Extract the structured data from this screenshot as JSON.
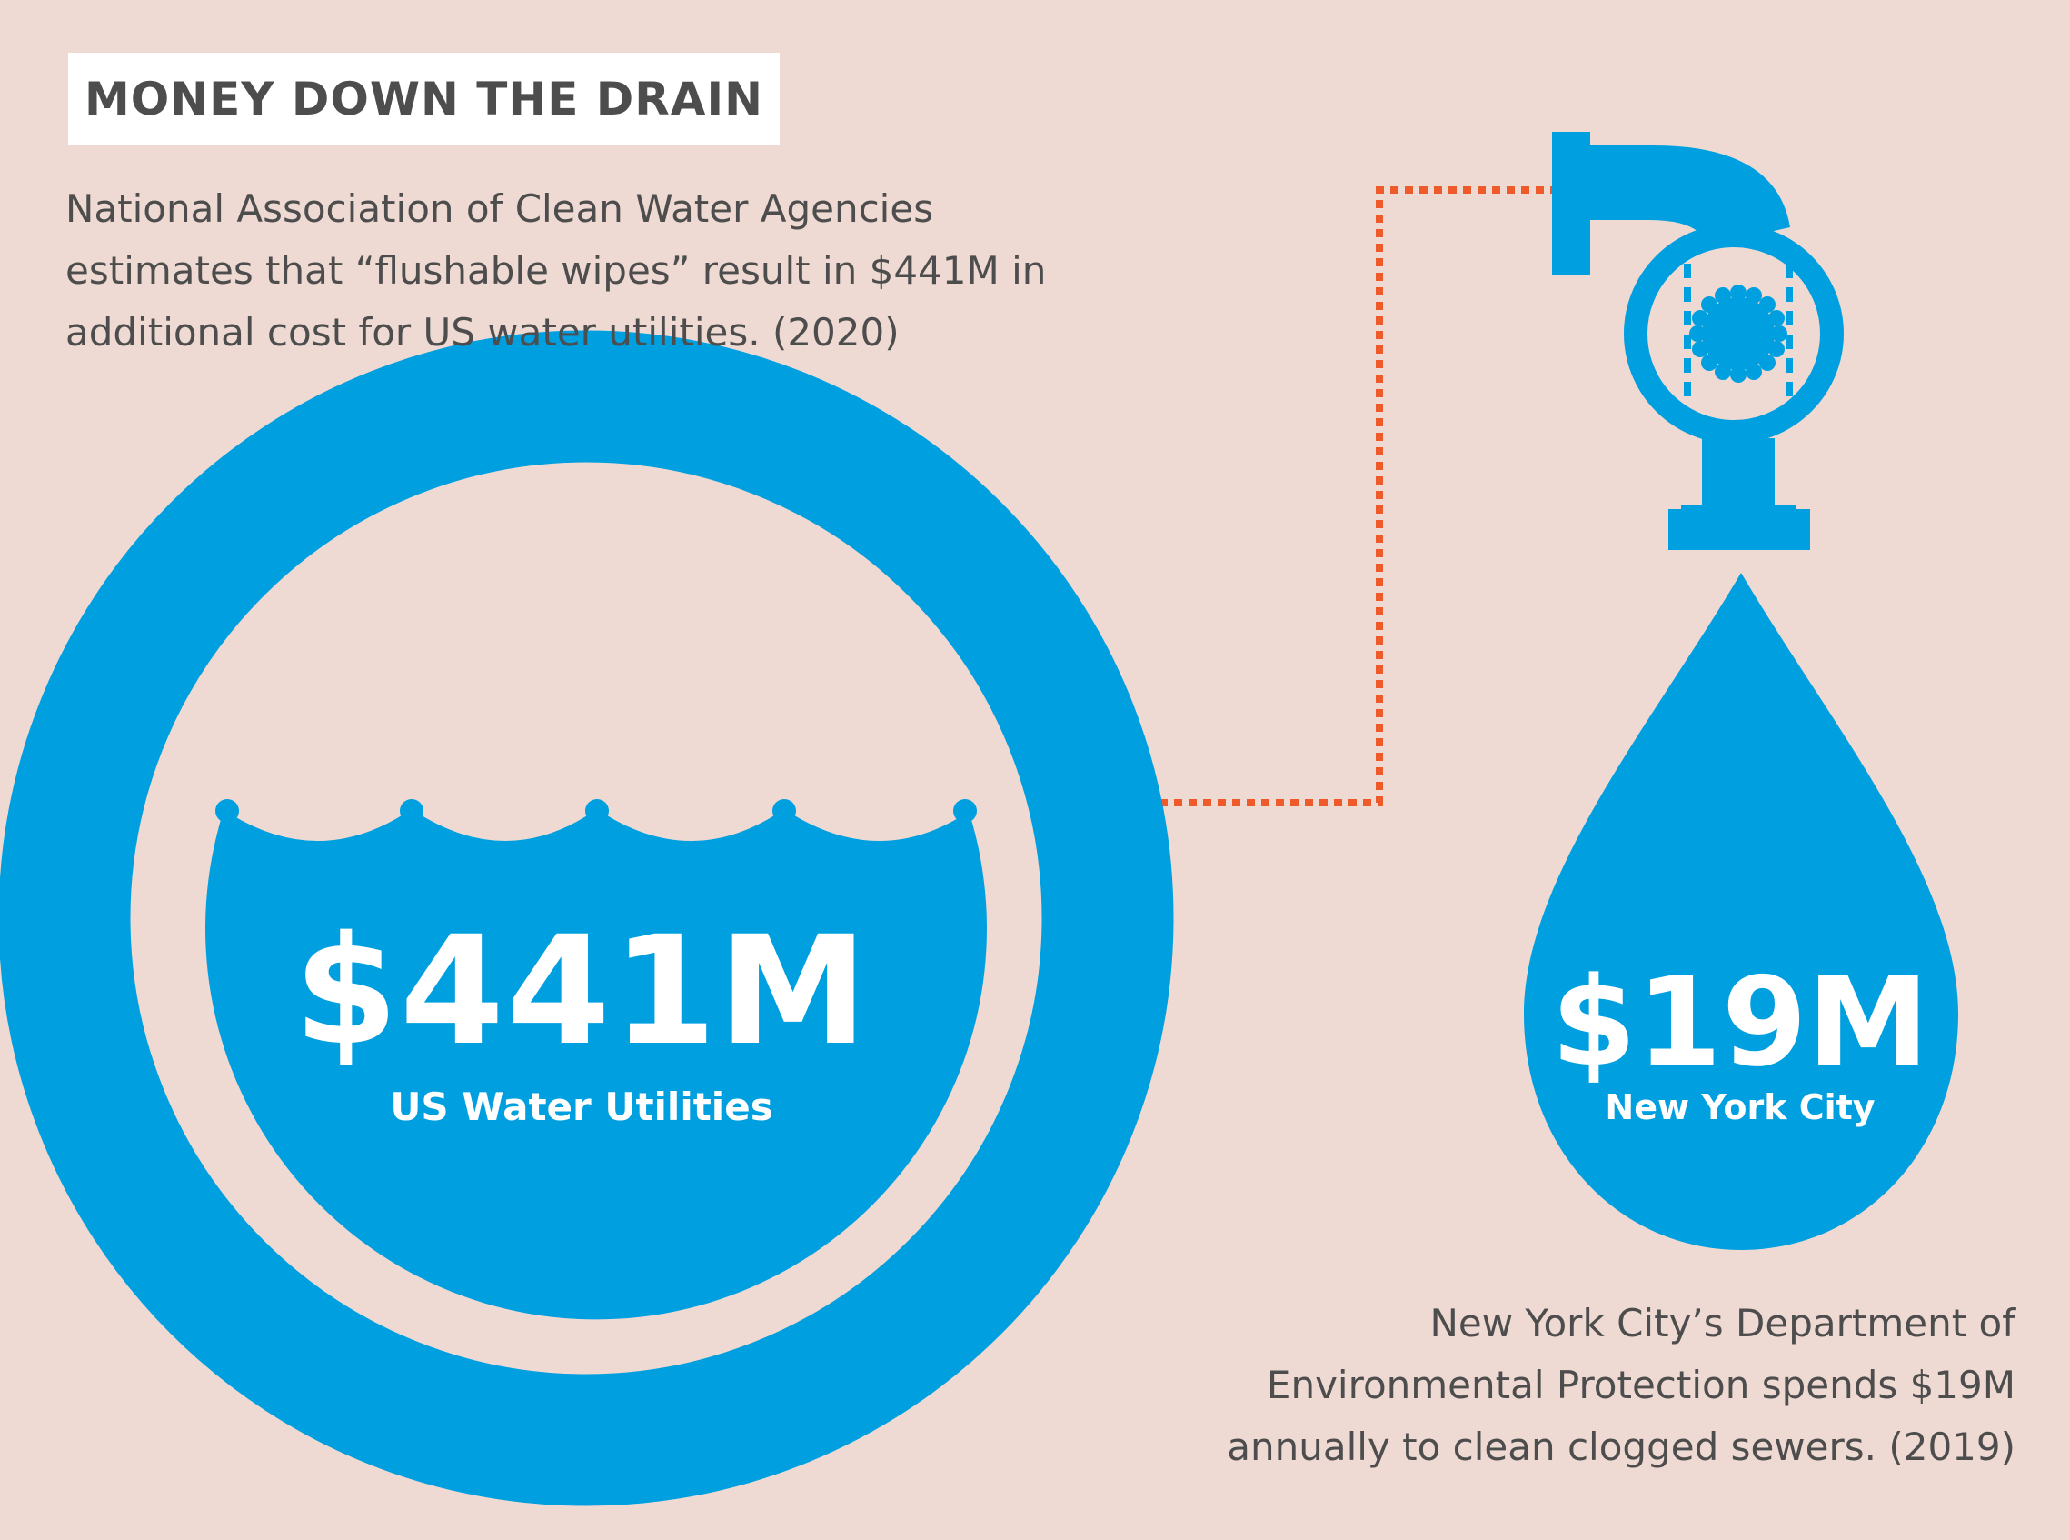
{
  "title": "MONEY DOWN THE DRAIN",
  "intro": {
    "lines": [
      "National Association of Clean Water Agencies",
      "estimates that “flushable wipes” result in $441M in",
      "additional cost for US water utilities. (2020)"
    ]
  },
  "us_stat": {
    "value": "$441M",
    "label": "US Water Utilities"
  },
  "nyc_stat": {
    "value": "$19M",
    "label": "New York City"
  },
  "nyc_note": {
    "lines": [
      "New York City’s Department of",
      "Environmental Protection spends $19M",
      "annually to clean clogged sewers. (2019)"
    ]
  },
  "colors": {
    "background": "#efdad3",
    "accent_blue": "#009fdf",
    "connector_orange": "#ee5a2a",
    "text_gray": "#4d4d4d",
    "title_box": "#ffffff"
  },
  "icons": [
    "drain-pipe-icon",
    "water-drop-icon",
    "water-circle-icon",
    "flower-grate-icon"
  ]
}
